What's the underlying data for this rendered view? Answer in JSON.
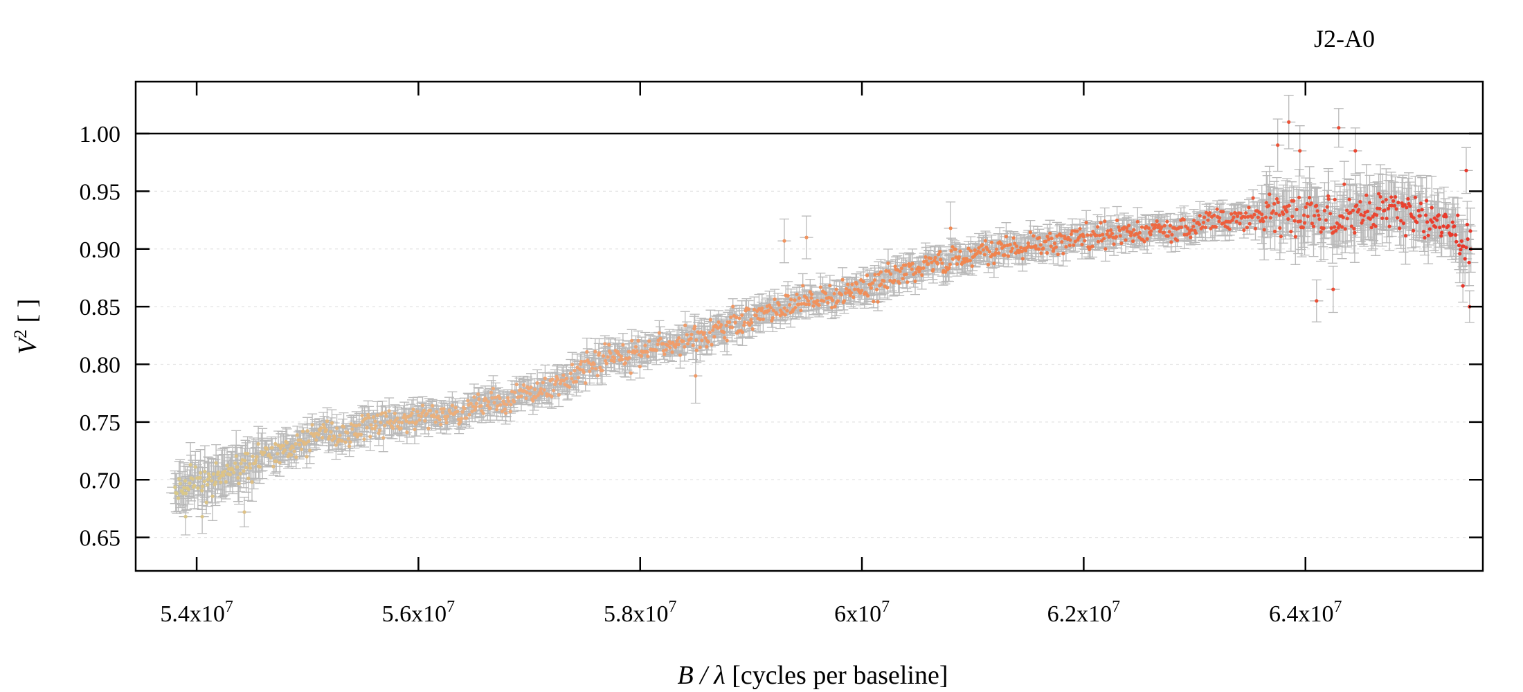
{
  "chart_data": {
    "type": "scatter",
    "title": "J2-A0",
    "xlabel": "B / λ [cycles per baseline]",
    "ylabel": "V² [ ]",
    "xlim": [
      53450000,
      65600000
    ],
    "ylim": [
      0.621,
      1.045
    ],
    "x_ticks": [
      54000000,
      56000000,
      58000000,
      60000000,
      62000000,
      64000000
    ],
    "x_tick_labels": [
      {
        "mantissa": "5.4x10",
        "exp": "7"
      },
      {
        "mantissa": "5.6x10",
        "exp": "7"
      },
      {
        "mantissa": "5.8x10",
        "exp": "7"
      },
      {
        "mantissa": "6x10",
        "exp": "7"
      },
      {
        "mantissa": "6.2x10",
        "exp": "7"
      },
      {
        "mantissa": "6.4x10",
        "exp": "7"
      }
    ],
    "y_ticks": [
      0.65,
      0.7,
      0.75,
      0.8,
      0.85,
      0.9,
      0.95,
      1.0
    ],
    "y_tick_labels": [
      "0.65",
      "0.70",
      "0.75",
      "0.80",
      "0.85",
      "0.90",
      "0.95",
      "1.00"
    ],
    "reference_line_y": 1.0,
    "grid": "horizontal dotted",
    "legend": "none",
    "color_gradient": [
      "#d8c98a",
      "#f0a878",
      "#f0864f",
      "#e8362a"
    ],
    "error_bar_color": "#b9b9b9",
    "trend": {
      "x": [
        53800000,
        54500000,
        55000000,
        55700000,
        56500000,
        57200000,
        57800000,
        58500000,
        59000000,
        59500000,
        60000000,
        60500000,
        61000000,
        61600000,
        62200000,
        62800000,
        63300000,
        63800000,
        64300000,
        64800000,
        65200000,
        65500000
      ],
      "y": [
        0.69,
        0.715,
        0.735,
        0.75,
        0.762,
        0.782,
        0.808,
        0.822,
        0.84,
        0.855,
        0.866,
        0.884,
        0.895,
        0.903,
        0.912,
        0.918,
        0.925,
        0.93,
        0.928,
        0.933,
        0.925,
        0.9
      ]
    },
    "highlight_points": [
      {
        "x": 63850000,
        "y": 1.01
      },
      {
        "x": 64300000,
        "y": 1.005
      },
      {
        "x": 63750000,
        "y": 0.99
      },
      {
        "x": 63950000,
        "y": 0.985
      },
      {
        "x": 64450000,
        "y": 0.985
      },
      {
        "x": 65450000,
        "y": 0.968
      },
      {
        "x": 59300000,
        "y": 0.907
      },
      {
        "x": 59500000,
        "y": 0.91
      },
      {
        "x": 60800000,
        "y": 0.918
      },
      {
        "x": 64250000,
        "y": 0.865
      },
      {
        "x": 64100000,
        "y": 0.855
      },
      {
        "x": 65420000,
        "y": 0.868
      },
      {
        "x": 65480000,
        "y": 0.85
      },
      {
        "x": 53900000,
        "y": 0.668
      },
      {
        "x": 54050000,
        "y": 0.668
      },
      {
        "x": 54430000,
        "y": 0.672
      },
      {
        "x": 58500000,
        "y": 0.79
      }
    ],
    "n_points": 1250
  }
}
